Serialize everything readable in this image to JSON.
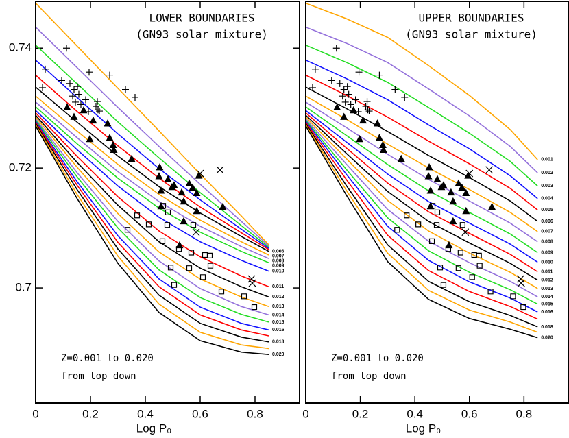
{
  "chart_data": [
    {
      "type": "line",
      "title": "LOWER BOUNDARIES",
      "subtitle": "(GN93 solar mixture)",
      "annotations": [
        "Z=0.001 to 0.020",
        "from top down"
      ],
      "x_label": "Log P₀",
      "xlim": [
        0,
        0.9625
      ],
      "ylim": [
        0.6808,
        0.7478
      ],
      "xticks": [
        0,
        0.2,
        0.4,
        0.6,
        0.8
      ],
      "yticks": [
        0.7,
        0.72,
        0.74
      ],
      "x": [
        0,
        0.15,
        0.3,
        0.45,
        0.6,
        0.75,
        0.85
      ],
      "series": [
        {
          "color": "#ffa500",
          "values": [
            0.7475,
            0.7404,
            0.7333,
            0.7262,
            0.719,
            0.712,
            0.7072
          ]
        },
        {
          "color": "#9370db",
          "values": [
            0.7435,
            0.7368,
            0.7301,
            0.7236,
            0.7173,
            0.7111,
            0.707
          ]
        },
        {
          "color": "#22dd22",
          "values": [
            0.7405,
            0.7341,
            0.7277,
            0.7217,
            0.7159,
            0.7104,
            0.7068
          ]
        },
        {
          "color": "#1010ff",
          "values": [
            0.738,
            0.7318,
            0.7257,
            0.7199,
            0.7147,
            0.7098,
            0.7066
          ]
        },
        {
          "color": "#ff0000",
          "values": [
            0.7355,
            0.7295,
            0.7237,
            0.7183,
            0.7135,
            0.7092,
            0.7064
          ]
        },
        {
          "name": "0.006",
          "color": "#000000",
          "values": [
            0.7335,
            0.7277,
            0.722,
            0.7169,
            0.7125,
            0.7086,
            0.7061
          ]
        },
        {
          "name": "0.007",
          "color": "#ffa500",
          "values": [
            0.732,
            0.7262,
            0.7206,
            0.7156,
            0.7113,
            0.7077,
            0.7055
          ]
        },
        {
          "name": "0.008",
          "color": "#9370db",
          "values": [
            0.731,
            0.7251,
            0.7194,
            0.7144,
            0.7103,
            0.7069,
            0.7049
          ]
        },
        {
          "name": "0.009",
          "color": "#22dd22",
          "values": [
            0.7302,
            0.7241,
            0.7183,
            0.7133,
            0.7093,
            0.7061,
            0.7042
          ]
        },
        {
          "name": "0.010",
          "color": "#1010ff",
          "values": [
            0.7296,
            0.7231,
            0.717,
            0.7118,
            0.7077,
            0.7046,
            0.7028
          ]
        },
        {
          "name": "0.011",
          "color": "#ff0000",
          "values": [
            0.7292,
            0.722,
            0.7152,
            0.7095,
            0.7052,
            0.702,
            0.7002
          ]
        },
        {
          "name": "0.012",
          "color": "#000000",
          "values": [
            0.7288,
            0.721,
            0.7138,
            0.7077,
            0.7033,
            0.7002,
            0.6985
          ]
        },
        {
          "name": "0.013",
          "color": "#ffa500",
          "values": [
            0.7285,
            0.7202,
            0.7124,
            0.706,
            0.7015,
            0.6985,
            0.6969
          ]
        },
        {
          "name": "0.014",
          "color": "#9370db",
          "values": [
            0.7282,
            0.7193,
            0.7111,
            0.7045,
            0.6999,
            0.6969,
            0.6955
          ]
        },
        {
          "name": "0.015",
          "color": "#22dd22",
          "values": [
            0.728,
            0.7186,
            0.71,
            0.703,
            0.6984,
            0.6956,
            0.6943
          ]
        },
        {
          "name": "0.016",
          "color": "#1010ff",
          "values": [
            0.7278,
            0.7178,
            0.7087,
            0.7015,
            0.6968,
            0.6941,
            0.693
          ]
        },
        {
          "color": "#ff0000",
          "values": [
            0.7276,
            0.7172,
            0.7076,
            0.7002,
            0.6955,
            0.693,
            0.692
          ]
        },
        {
          "name": "0.018",
          "color": "#000000",
          "values": [
            0.7274,
            0.7165,
            0.7065,
            0.6988,
            0.6941,
            0.6918,
            0.691
          ]
        },
        {
          "color": "#ffa500",
          "values": [
            0.7272,
            0.7157,
            0.7053,
            0.6973,
            0.6926,
            0.6905,
            0.6899
          ]
        },
        {
          "name": "0.020",
          "color": "#000000",
          "values": [
            0.727,
            0.715,
            0.7041,
            0.6959,
            0.6912,
            0.6893,
            0.6889
          ]
        }
      ],
      "markers": [
        {
          "shape": "plus",
          "x": [
            0.035,
            0.025,
            0.1125,
            0.095,
            0.125,
            0.14,
            0.1525,
            0.135,
            0.1575,
            0.145,
            0.165,
            0.1825,
            0.1925,
            0.195,
            0.225,
            0.2275,
            0.22,
            0.2325,
            0.27,
            0.3275,
            0.3625
          ],
          "y": [
            0.7365,
            0.7334,
            0.74,
            0.7346,
            0.7341,
            0.7331,
            0.7336,
            0.732,
            0.7323,
            0.731,
            0.7306,
            0.7314,
            0.7294,
            0.736,
            0.7311,
            0.7297,
            0.7303,
            0.7295,
            0.7355,
            0.7331,
            0.7318
          ]
        },
        {
          "shape": "triangle",
          "x": [
            0.115,
            0.14,
            0.175,
            0.21,
            0.1975,
            0.2625,
            0.27,
            0.2825,
            0.285,
            0.35,
            0.4525,
            0.45,
            0.4825,
            0.4975,
            0.4575,
            0.505,
            0.5325,
            0.56,
            0.5725,
            0.54,
            0.5875,
            0.5875,
            0.54,
            0.4575,
            0.595,
            0.6825,
            0.525
          ],
          "y": [
            0.7301,
            0.7285,
            0.7296,
            0.7279,
            0.7248,
            0.7274,
            0.725,
            0.7238,
            0.723,
            0.7215,
            0.7201,
            0.7186,
            0.7181,
            0.7168,
            0.7162,
            0.7171,
            0.7159,
            0.7174,
            0.7167,
            0.7144,
            0.7158,
            0.7128,
            0.7111,
            0.7136,
            0.7187,
            0.7135,
            0.7071
          ]
        },
        {
          "shape": "square",
          "x": [
            0.37,
            0.335,
            0.4125,
            0.465,
            0.4825,
            0.48,
            0.4625,
            0.575,
            0.5225,
            0.5675,
            0.6175,
            0.635,
            0.6375,
            0.4925,
            0.56,
            0.61,
            0.505,
            0.6775,
            0.76,
            0.7975
          ],
          "y": [
            0.7121,
            0.7097,
            0.7106,
            0.7137,
            0.7126,
            0.7105,
            0.7078,
            0.7105,
            0.7065,
            0.7059,
            0.7055,
            0.7054,
            0.7037,
            0.7034,
            0.7033,
            0.7018,
            0.7005,
            0.6994,
            0.6986,
            0.6968
          ]
        },
        {
          "shape": "cross",
          "x": [
            0.6,
            0.6725,
            0.585,
            0.7875,
            0.79
          ],
          "y": [
            0.7191,
            0.7197,
            0.7093,
            0.7015,
            0.7008
          ]
        }
      ]
    },
    {
      "type": "line",
      "title": "UPPER BOUNDARIES",
      "subtitle": "(GN93 solar mixture)",
      "annotations": [
        "Z=0.001 to 0.020",
        "from top down"
      ],
      "x_label": "Log P₀",
      "xlim": [
        0,
        0.9625
      ],
      "ylim": [
        0.6808,
        0.7478
      ],
      "xticks": [
        0,
        0.2,
        0.4,
        0.6,
        0.8
      ],
      "x": [
        0,
        0.15,
        0.3,
        0.45,
        0.6,
        0.75,
        0.85
      ],
      "series": [
        {
          "name": "0.001",
          "color": "#ffa500",
          "values": [
            0.7475,
            0.7449,
            0.7418,
            0.7371,
            0.7321,
            0.7264,
            0.7214
          ]
        },
        {
          "name": "0.002",
          "color": "#9370db",
          "values": [
            0.7435,
            0.7408,
            0.7376,
            0.7332,
            0.7287,
            0.7236,
            0.7192
          ]
        },
        {
          "name": "0.003",
          "color": "#22dd22",
          "values": [
            0.7405,
            0.7376,
            0.7343,
            0.7301,
            0.7258,
            0.7211,
            0.717
          ]
        },
        {
          "name": "0.004",
          "color": "#1010ff",
          "values": [
            0.738,
            0.7349,
            0.7314,
            0.7272,
            0.7232,
            0.7187,
            0.7149
          ]
        },
        {
          "name": "0.005",
          "color": "#ff0000",
          "values": [
            0.7355,
            0.7321,
            0.7285,
            0.7245,
            0.7207,
            0.7166,
            0.713
          ]
        },
        {
          "name": "0.006",
          "color": "#000000",
          "values": [
            0.7335,
            0.7299,
            0.7261,
            0.7221,
            0.7184,
            0.7145,
            0.7111
          ]
        },
        {
          "name": "0.007",
          "color": "#ffa500",
          "values": [
            0.732,
            0.7281,
            0.724,
            0.72,
            0.7164,
            0.7126,
            0.7094
          ]
        },
        {
          "name": "0.008",
          "color": "#9370db",
          "values": [
            0.731,
            0.7267,
            0.7223,
            0.7181,
            0.7145,
            0.7108,
            0.7077
          ]
        },
        {
          "name": "0.009",
          "color": "#22dd22",
          "values": [
            0.7302,
            0.7254,
            0.7206,
            0.7162,
            0.7126,
            0.709,
            0.7059
          ]
        },
        {
          "name": "0.010",
          "color": "#1010ff",
          "values": [
            0.7296,
            0.7243,
            0.719,
            0.7144,
            0.7108,
            0.7073,
            0.7043
          ]
        },
        {
          "name": "0.011",
          "color": "#ff0000",
          "values": [
            0.7292,
            0.7233,
            0.7175,
            0.7127,
            0.7091,
            0.7056,
            0.7027
          ]
        },
        {
          "name": "0.012",
          "color": "#000000",
          "values": [
            0.7288,
            0.7224,
            0.7161,
            0.7111,
            0.7075,
            0.7041,
            0.7013
          ]
        },
        {
          "name": "0.013",
          "color": "#ffa500",
          "values": [
            0.7285,
            0.7215,
            0.7146,
            0.7095,
            0.7058,
            0.7026,
            0.6999
          ]
        },
        {
          "name": "0.014",
          "color": "#9370db",
          "values": [
            0.7282,
            0.7206,
            0.7131,
            0.7078,
            0.7042,
            0.7011,
            0.6985
          ]
        },
        {
          "name": "0.015",
          "color": "#22dd22",
          "values": [
            0.728,
            0.7197,
            0.7117,
            0.7062,
            0.7026,
            0.6997,
            0.6973
          ]
        },
        {
          "name": "0.016",
          "color": "#1010ff",
          "values": [
            0.7278,
            0.7189,
            0.7103,
            0.7046,
            0.701,
            0.6983,
            0.696
          ]
        },
        {
          "color": "#ff0000",
          "values": [
            0.7276,
            0.718,
            0.7088,
            0.7029,
            0.6994,
            0.6969,
            0.6948
          ]
        },
        {
          "name": "0.018",
          "color": "#000000",
          "values": [
            0.7274,
            0.717,
            0.7072,
            0.7011,
            0.6977,
            0.6954,
            0.6935
          ]
        },
        {
          "color": "#ffa500",
          "values": [
            0.7272,
            0.7162,
            0.7058,
            0.6996,
            0.6963,
            0.6943,
            0.6926
          ]
        },
        {
          "name": "0.020",
          "color": "#000000",
          "values": [
            0.727,
            0.7154,
            0.7044,
            0.6981,
            0.6949,
            0.6931,
            0.6917
          ]
        }
      ],
      "markers": [
        {
          "shape": "plus",
          "x": [
            0.035,
            0.025,
            0.1125,
            0.095,
            0.125,
            0.14,
            0.1525,
            0.135,
            0.1575,
            0.145,
            0.165,
            0.1825,
            0.1925,
            0.195,
            0.225,
            0.2275,
            0.22,
            0.2325,
            0.27,
            0.3275,
            0.3625
          ],
          "y": [
            0.7365,
            0.7334,
            0.74,
            0.7346,
            0.7341,
            0.7331,
            0.7336,
            0.732,
            0.7323,
            0.731,
            0.7306,
            0.7314,
            0.7294,
            0.736,
            0.7311,
            0.7297,
            0.7303,
            0.7295,
            0.7355,
            0.7331,
            0.7318
          ]
        },
        {
          "shape": "triangle",
          "x": [
            0.115,
            0.14,
            0.175,
            0.21,
            0.1975,
            0.2625,
            0.27,
            0.2825,
            0.285,
            0.35,
            0.4525,
            0.45,
            0.4825,
            0.4975,
            0.4575,
            0.505,
            0.5325,
            0.56,
            0.5725,
            0.54,
            0.5875,
            0.5875,
            0.54,
            0.4575,
            0.595,
            0.6825,
            0.525
          ],
          "y": [
            0.7301,
            0.7285,
            0.7296,
            0.7279,
            0.7248,
            0.7274,
            0.725,
            0.7238,
            0.723,
            0.7215,
            0.7201,
            0.7186,
            0.7181,
            0.7168,
            0.7162,
            0.7171,
            0.7159,
            0.7174,
            0.7167,
            0.7144,
            0.7158,
            0.7128,
            0.7111,
            0.7136,
            0.7187,
            0.7135,
            0.7071
          ]
        },
        {
          "shape": "square",
          "x": [
            0.37,
            0.335,
            0.4125,
            0.465,
            0.4825,
            0.48,
            0.4625,
            0.575,
            0.5225,
            0.5675,
            0.6175,
            0.635,
            0.6375,
            0.4925,
            0.56,
            0.61,
            0.505,
            0.6775,
            0.76,
            0.7975
          ],
          "y": [
            0.7121,
            0.7097,
            0.7106,
            0.7137,
            0.7126,
            0.7105,
            0.7078,
            0.7105,
            0.7065,
            0.7059,
            0.7055,
            0.7054,
            0.7037,
            0.7034,
            0.7033,
            0.7018,
            0.7005,
            0.6994,
            0.6986,
            0.6968
          ]
        },
        {
          "shape": "cross",
          "x": [
            0.6,
            0.6725,
            0.585,
            0.7875,
            0.79
          ],
          "y": [
            0.7191,
            0.7197,
            0.7093,
            0.7015,
            0.7008
          ]
        }
      ]
    }
  ]
}
